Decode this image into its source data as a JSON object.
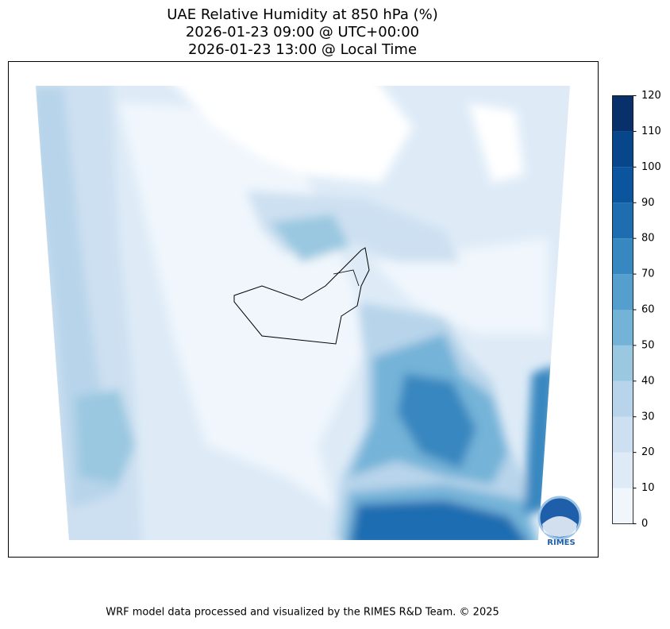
{
  "title": [
    "UAE Relative Humidity at 850 hPa (%)",
    "2026-01-23 09:00 @ UTC+00:00",
    "2026-01-23 13:00 @ Local Time"
  ],
  "colorbar": {
    "ticks": [
      0,
      10,
      20,
      30,
      40,
      50,
      60,
      70,
      80,
      90,
      100,
      110,
      120
    ],
    "colors": [
      "#f0f6fc",
      "#deebf7",
      "#cde0f1",
      "#b7d4ea",
      "#9ac8e0",
      "#74b3d8",
      "#549fcd",
      "#3787c0",
      "#1f6db1",
      "#0b559f",
      "#08468b",
      "#08306b"
    ]
  },
  "logo": "RIMES",
  "footer": "WRF model data processed and visualized by the RIMES R&D Team. © 2025"
}
